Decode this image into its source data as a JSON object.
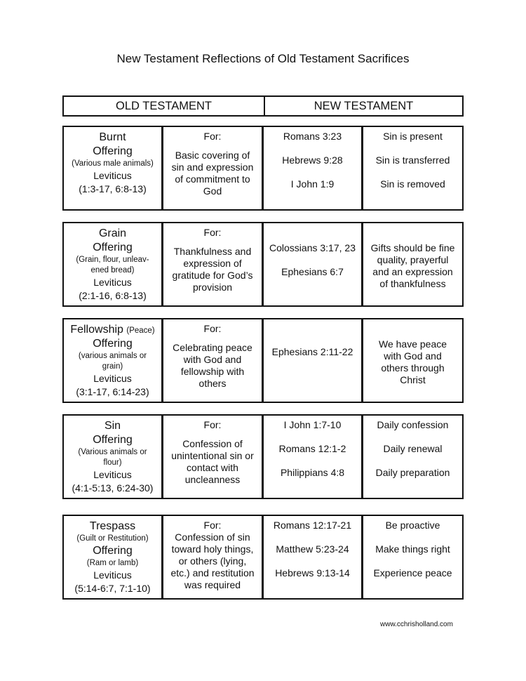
{
  "title": "New Testament Reflections of Old Testament Sacrifices",
  "headers": [
    "OLD TESTAMENT",
    "NEW TESTAMENT"
  ],
  "rows": [
    {
      "offering": [
        [
          "big",
          "Burnt"
        ],
        [
          "big",
          "Offering"
        ],
        [
          "small",
          "(Various male animals)"
        ],
        [
          "med",
          "Leviticus"
        ],
        [
          "med",
          "(1:3-17, 6:8-13)"
        ]
      ],
      "for_label": "For:",
      "purpose": [
        "Basic covering of",
        "sin and expression",
        "of commitment to",
        "God"
      ],
      "references": [
        "Romans 3:23",
        "Hebrews 9:28",
        "I John 1:9"
      ],
      "applications": [
        "Sin is present",
        "Sin is transferred",
        "Sin is removed"
      ]
    },
    {
      "offering": [
        [
          "big",
          "Grain"
        ],
        [
          "big",
          "Offering"
        ],
        [
          "small",
          "(Grain, flour, unleav-"
        ],
        [
          "small",
          "ened bread)"
        ],
        [
          "med",
          "Leviticus"
        ],
        [
          "med",
          "(2:1-16, 6:8-13)"
        ]
      ],
      "for_label": "For:",
      "purpose": [
        "Thankfulness and",
        "expression of",
        "gratitude for God’s",
        "provision"
      ],
      "references": [
        "Colossians 3:17, 23",
        "Ephesians 6:7"
      ],
      "applications": [
        "Gifts should be fine quality, prayerful and an expression of thankfulness"
      ]
    },
    {
      "offering": [
        [
          "big",
          "Fellowship"
        ],
        [
          "big",
          "Offering"
        ],
        [
          "small",
          "(various animals or"
        ],
        [
          "small",
          "grain)"
        ],
        [
          "med",
          "Leviticus"
        ],
        [
          "med",
          "(3:1-17, 6:14-23)"
        ]
      ],
      "offering_note": "(Peace)",
      "for_label": "For:",
      "purpose": [
        "Celebrating peace",
        "with God and",
        "fellowship with",
        "others"
      ],
      "references": [
        "Ephesians 2:11-22"
      ],
      "applications": [
        "We have peace with God and others through Christ"
      ]
    },
    {
      "offering": [
        [
          "big",
          "Sin"
        ],
        [
          "big",
          "Offering"
        ],
        [
          "small",
          "(Various animals or"
        ],
        [
          "small",
          "flour)"
        ],
        [
          "med",
          "Leviticus"
        ],
        [
          "med",
          "(4:1-5:13, 6:24-30)"
        ]
      ],
      "for_label": "For:",
      "purpose": [
        "Confession of",
        "unintentional sin or",
        "contact with",
        "uncleanness"
      ],
      "references": [
        "I John 1:7-10",
        "Romans 12:1-2",
        "Philippians 4:8"
      ],
      "applications": [
        "Daily confession",
        "Daily renewal",
        "Daily preparation"
      ]
    },
    {
      "offering": [
        [
          "big",
          "Trespass"
        ],
        [
          "small",
          "(Guilt or Restitution)"
        ],
        [
          "big",
          "Offering"
        ],
        [
          "small",
          "(Ram or lamb)"
        ],
        [
          "med",
          "Leviticus"
        ],
        [
          "med",
          "(5:14-6:7, 7:1-10)"
        ]
      ],
      "for_label": "For:",
      "purpose": [
        "Confession of sin",
        "toward holy things,",
        "or others (lying,",
        "etc.)  and restitution",
        "was required"
      ],
      "references": [
        "Romans 12:17-21",
        "Matthew 5:23-24",
        "Hebrews 9:13-14"
      ],
      "applications": [
        "Be proactive",
        "Make things right",
        "Experience peace"
      ]
    }
  ],
  "footer": "www.cchrisholland.com"
}
